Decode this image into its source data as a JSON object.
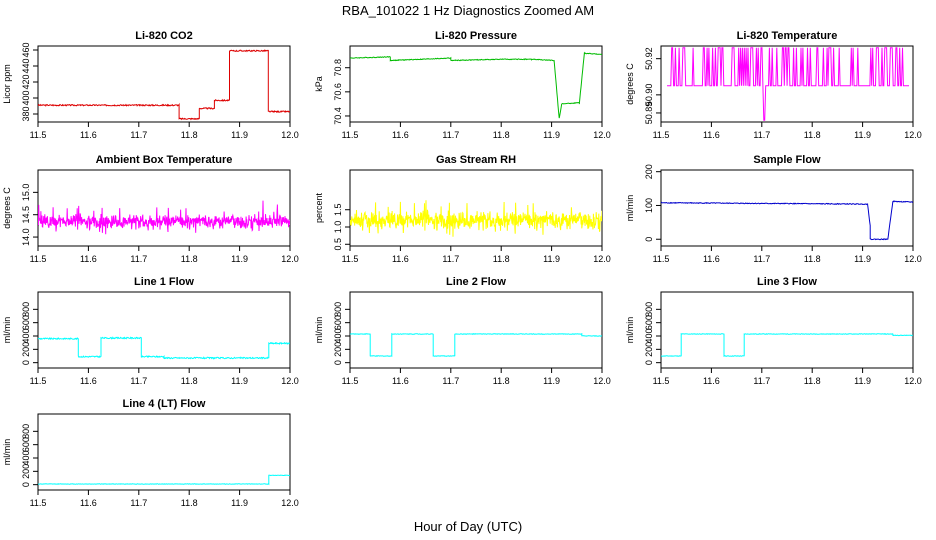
{
  "figure": {
    "title": "RBA_101022  1 Hz Diagnostics Zoomed AM",
    "xlabel": "Hour of Day (UTC)"
  },
  "chart_data": [
    {
      "type": "line",
      "title": "Li-820 CO2",
      "ylabel": "Licor ppm",
      "color": "#dd0000",
      "xlim": [
        11.5,
        12.0
      ],
      "ylim": [
        370,
        465
      ],
      "xticks": [
        "11.5",
        "11.6",
        "11.7",
        "11.8",
        "11.9",
        "12.0"
      ],
      "yticks": [
        380,
        400,
        420,
        440,
        460
      ],
      "noise": 0.8,
      "series": [
        {
          "x": [
            11.5,
            11.78,
            11.78,
            11.82,
            11.82,
            11.85,
            11.85,
            11.88,
            11.88,
            11.957,
            11.957,
            12.0
          ],
          "y": [
            391,
            391,
            374,
            374,
            387,
            387,
            397,
            397,
            459,
            459,
            383,
            383
          ]
        }
      ]
    },
    {
      "type": "line",
      "title": "Li-820 Pressure",
      "ylabel": "kPa",
      "color": "#00bb00",
      "xlim": [
        11.5,
        12.0
      ],
      "ylim": [
        70.35,
        70.98
      ],
      "xticks": [
        "11.5",
        "11.6",
        "11.7",
        "11.8",
        "11.9",
        "12.0"
      ],
      "yticks": [
        70.4,
        70.6,
        70.8
      ],
      "noise": 0.003,
      "series": [
        {
          "x": [
            11.5,
            11.58,
            11.58,
            11.64,
            11.7,
            11.7,
            11.8,
            11.86,
            11.86,
            11.905,
            11.915,
            11.915,
            11.92,
            11.92,
            11.955,
            11.955,
            11.965,
            11.965,
            12.0
          ],
          "y": [
            70.88,
            70.89,
            70.86,
            70.87,
            70.88,
            70.86,
            70.87,
            70.87,
            70.87,
            70.86,
            70.38,
            70.38,
            70.5,
            70.5,
            70.51,
            70.5,
            70.92,
            70.92,
            70.91
          ]
        }
      ]
    },
    {
      "type": "line",
      "title": "Li-820 Temperature",
      "ylabel": "degrees C",
      "color": "#ff00ff",
      "xlim": [
        11.5,
        12.0
      ],
      "ylim": [
        50.885,
        50.927
      ],
      "xticks": [
        "11.5",
        "11.6",
        "11.7",
        "11.8",
        "11.9",
        "12.0"
      ],
      "yticks": [
        50.89,
        50.9,
        50.92
      ],
      "ytick_labels": [
        "50.89",
        "50.90",
        "50.92"
      ],
      "baseline": 50.905,
      "spike_high": 50.926,
      "spike_low": 50.886,
      "spike_low_x": 11.705,
      "spike_density": 0.35
    },
    {
      "type": "line",
      "title": "Ambient Box Temperature",
      "ylabel": "degrees C",
      "color": "#ff00ff",
      "xlim": [
        11.5,
        12.0
      ],
      "ylim": [
        13.8,
        15.5
      ],
      "xticks": [
        "11.5",
        "11.6",
        "11.7",
        "11.8",
        "11.9",
        "12.0"
      ],
      "yticks": [
        14.0,
        14.5,
        15.0
      ],
      "ytick_labels": [
        "14.0",
        "14.5",
        "15.0"
      ],
      "noise_band": [
        14.35,
        0.42
      ],
      "series": [
        {
          "x": [
            11.5,
            12.0
          ],
          "y": [
            14.35,
            14.35
          ]
        }
      ]
    },
    {
      "type": "line",
      "title": "Gas Stream RH",
      "ylabel": "percent",
      "color": "#ffff00",
      "xlim": [
        11.5,
        12.0
      ],
      "ylim": [
        0.45,
        2.65
      ],
      "xticks": [
        "11.5",
        "11.6",
        "11.7",
        "11.8",
        "11.9",
        "12.0"
      ],
      "yticks": [
        0.5,
        1.0,
        1.5
      ],
      "ytick_labels": [
        "0.5",
        "1.0",
        "1.5"
      ],
      "noise_band": [
        1.2,
        0.7
      ],
      "series": [
        {
          "x": [
            11.5,
            12.0
          ],
          "y": [
            1.2,
            1.2
          ]
        }
      ]
    },
    {
      "type": "line",
      "title": "Sample Flow",
      "ylabel": "ml/min",
      "color": "#0000cc",
      "xlim": [
        11.5,
        12.0
      ],
      "ylim": [
        -20,
        205
      ],
      "xticks": [
        "11.5",
        "11.6",
        "11.7",
        "11.8",
        "11.9",
        "12.0"
      ],
      "yticks": [
        0,
        100,
        200
      ],
      "noise": 1.2,
      "series": [
        {
          "x": [
            11.5,
            11.91,
            11.91,
            11.915,
            11.915,
            11.95,
            11.95,
            11.96,
            11.96,
            12.0
          ],
          "y": [
            108,
            104,
            104,
            40,
            0,
            0,
            0,
            112,
            112,
            110
          ]
        }
      ]
    },
    {
      "type": "line",
      "title": "Line 1 Flow",
      "ylabel": "ml/min",
      "color": "#00ffff",
      "xlim": [
        11.5,
        12.0
      ],
      "ylim": [
        -80,
        1060
      ],
      "xticks": [
        "11.5",
        "11.6",
        "11.7",
        "11.8",
        "11.9",
        "12.0"
      ],
      "yticks": [
        0,
        200,
        400,
        600,
        800
      ],
      "noise": 10,
      "series": [
        {
          "x": [
            11.5,
            11.58,
            11.58,
            11.625,
            11.625,
            11.705,
            11.705,
            11.75,
            11.75,
            11.958,
            11.958,
            12.0
          ],
          "y": [
            360,
            360,
            90,
            90,
            370,
            370,
            90,
            90,
            70,
            70,
            290,
            290
          ]
        }
      ]
    },
    {
      "type": "line",
      "title": "Line 2 Flow",
      "ylabel": "ml/min",
      "color": "#00ffff",
      "xlim": [
        11.5,
        12.0
      ],
      "ylim": [
        -80,
        1060
      ],
      "xticks": [
        "11.5",
        "11.6",
        "11.7",
        "11.8",
        "11.9",
        "12.0"
      ],
      "yticks": [
        0,
        200,
        400,
        600,
        800
      ],
      "noise": 4,
      "series": [
        {
          "x": [
            11.5,
            11.54,
            11.54,
            11.583,
            11.583,
            11.665,
            11.665,
            11.708,
            11.708,
            11.96,
            11.96,
            12.0
          ],
          "y": [
            430,
            430,
            100,
            100,
            430,
            430,
            100,
            100,
            430,
            430,
            400,
            400
          ]
        }
      ]
    },
    {
      "type": "line",
      "title": "Line 3 Flow",
      "ylabel": "ml/min",
      "color": "#00ffff",
      "xlim": [
        11.5,
        12.0
      ],
      "ylim": [
        -80,
        1060
      ],
      "xticks": [
        "11.5",
        "11.6",
        "11.7",
        "11.8",
        "11.9",
        "12.0"
      ],
      "yticks": [
        0,
        200,
        400,
        600,
        800
      ],
      "noise": 4,
      "series": [
        {
          "x": [
            11.5,
            11.54,
            11.54,
            11.625,
            11.625,
            11.665,
            11.665,
            11.96,
            11.96,
            12.0
          ],
          "y": [
            100,
            100,
            430,
            430,
            100,
            100,
            430,
            430,
            410,
            410
          ]
        }
      ]
    },
    {
      "type": "line",
      "title": "Line 4 (LT) Flow",
      "ylabel": "ml/min",
      "color": "#00ffff",
      "xlim": [
        11.5,
        12.0
      ],
      "ylim": [
        -80,
        1060
      ],
      "xticks": [
        "11.5",
        "11.6",
        "11.7",
        "11.8",
        "11.9",
        "12.0"
      ],
      "yticks": [
        0,
        200,
        400,
        600,
        800
      ],
      "noise": 3,
      "series": [
        {
          "x": [
            11.5,
            11.958,
            11.958,
            12.0
          ],
          "y": [
            10,
            10,
            140,
            140
          ]
        }
      ]
    }
  ]
}
